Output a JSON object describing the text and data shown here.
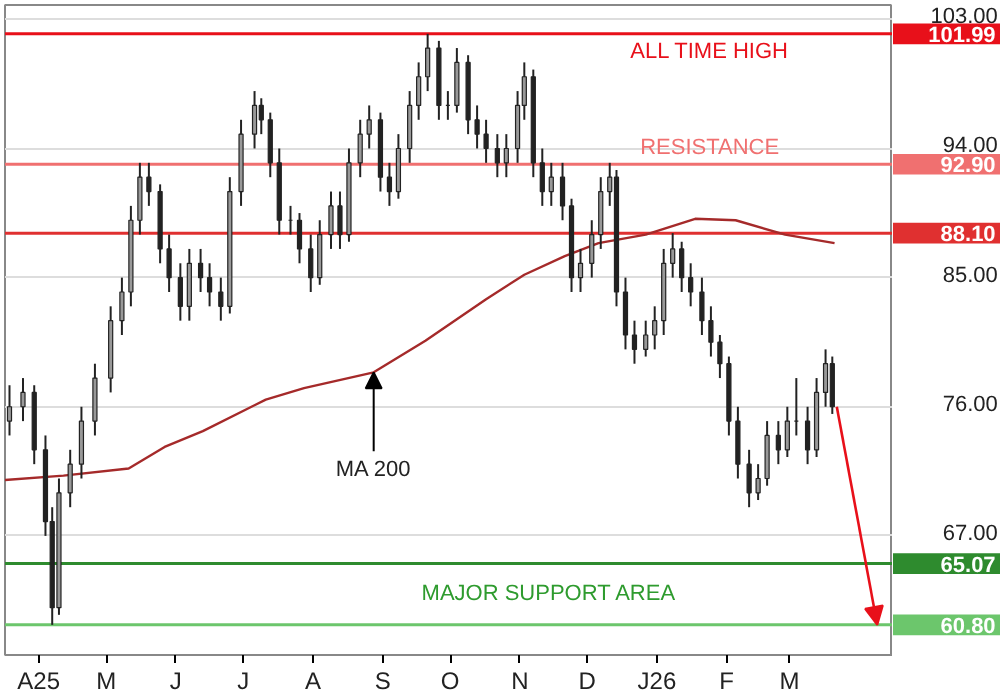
{
  "chart_data": {
    "type": "candlestick",
    "x": [
      "2025-03-19",
      "2025-03-25",
      "2025-03-30",
      "2025-04-04",
      "2025-04-07",
      "2025-04-10",
      "2025-04-15",
      "2025-04-20",
      "2025-04-26",
      "2025-05-03",
      "2025-05-08",
      "2025-05-12",
      "2025-05-16",
      "2025-05-20",
      "2025-05-25",
      "2025-05-29",
      "2025-06-03",
      "2025-06-07",
      "2025-06-12",
      "2025-06-16",
      "2025-06-21",
      "2025-06-25",
      "2025-06-30",
      "2025-07-06",
      "2025-07-09",
      "2025-07-13",
      "2025-07-17",
      "2025-07-22",
      "2025-07-26",
      "2025-07-31",
      "2025-08-04",
      "2025-08-09",
      "2025-08-13",
      "2025-08-17",
      "2025-08-22",
      "2025-08-26",
      "2025-08-31",
      "2025-09-04",
      "2025-09-08",
      "2025-09-13",
      "2025-09-17",
      "2025-09-21",
      "2025-09-26",
      "2025-09-30",
      "2025-10-04",
      "2025-10-09",
      "2025-10-13",
      "2025-10-17",
      "2025-10-22",
      "2025-10-26",
      "2025-10-31",
      "2025-11-03",
      "2025-11-07",
      "2025-11-11",
      "2025-11-15",
      "2025-11-20",
      "2025-11-24",
      "2025-11-28",
      "2025-12-03",
      "2025-12-07",
      "2025-12-11",
      "2025-12-14",
      "2025-12-18",
      "2025-12-22",
      "2025-12-27",
      "2025-12-31",
      "2026-01-04",
      "2026-01-08",
      "2026-01-12",
      "2026-01-16",
      "2026-01-21",
      "2026-01-25",
      "2026-01-29",
      "2026-02-02",
      "2026-02-06",
      "2026-02-11",
      "2026-02-15",
      "2026-02-19",
      "2026-02-24",
      "2026-02-28",
      "2026-03-04",
      "2026-03-09",
      "2026-03-13",
      "2026-03-17",
      "2026-03-20"
    ],
    "ohlc": [
      [
        75,
        77.5,
        74,
        76
      ],
      [
        76,
        78,
        75,
        77
      ],
      [
        77,
        77.5,
        72,
        73
      ],
      [
        73,
        74,
        67,
        68
      ],
      [
        68,
        69,
        60.8,
        62
      ],
      [
        62,
        71,
        61.5,
        70
      ],
      [
        70,
        73,
        69,
        72
      ],
      [
        72,
        76,
        71,
        75
      ],
      [
        75,
        79,
        74,
        78
      ],
      [
        78,
        83,
        77,
        82
      ],
      [
        82,
        85,
        81,
        84
      ],
      [
        84,
        90,
        83,
        89
      ],
      [
        89,
        93,
        88,
        92
      ],
      [
        92,
        93,
        90,
        91
      ],
      [
        91,
        91.5,
        86,
        87
      ],
      [
        87,
        88,
        84,
        85
      ],
      [
        85,
        86,
        82,
        83
      ],
      [
        83,
        87,
        82,
        86
      ],
      [
        86,
        87,
        84,
        85
      ],
      [
        85,
        86,
        83,
        84
      ],
      [
        84,
        85,
        82,
        83
      ],
      [
        83,
        92,
        82.5,
        91
      ],
      [
        91,
        96,
        90,
        95
      ],
      [
        95,
        98,
        94,
        97
      ],
      [
        97,
        97.5,
        95,
        96
      ],
      [
        96,
        96.5,
        92,
        93
      ],
      [
        93,
        94,
        88,
        89
      ],
      [
        89,
        90,
        88,
        89
      ],
      [
        89,
        89.5,
        86,
        87
      ],
      [
        87,
        88,
        84,
        85
      ],
      [
        85,
        89,
        84.5,
        88
      ],
      [
        88,
        91,
        87,
        90
      ],
      [
        90,
        91,
        87,
        88
      ],
      [
        88,
        94,
        87.5,
        93
      ],
      [
        93,
        96,
        92,
        95
      ],
      [
        95,
        97,
        94,
        96
      ],
      [
        96,
        96.5,
        91,
        92
      ],
      [
        92,
        93,
        90,
        91
      ],
      [
        91,
        95,
        90.5,
        94
      ],
      [
        94,
        98,
        93,
        97
      ],
      [
        97,
        100,
        96,
        99
      ],
      [
        99,
        101.99,
        98,
        101
      ],
      [
        101,
        101.5,
        96,
        97
      ],
      [
        97,
        98,
        96,
        97
      ],
      [
        97,
        101,
        96.5,
        100
      ],
      [
        100,
        100.5,
        95,
        96
      ],
      [
        96,
        97,
        94,
        95
      ],
      [
        95,
        96,
        93,
        94
      ],
      [
        94,
        95,
        92,
        93
      ],
      [
        93,
        95,
        92,
        94
      ],
      [
        94,
        98,
        93,
        97
      ],
      [
        97,
        100,
        96,
        99
      ],
      [
        99,
        99.5,
        92,
        93
      ],
      [
        93,
        94,
        90,
        91
      ],
      [
        91,
        93,
        90,
        92
      ],
      [
        92,
        93,
        89,
        90
      ],
      [
        90,
        90.5,
        84,
        85
      ],
      [
        85,
        87,
        84,
        86
      ],
      [
        86,
        89,
        85,
        88
      ],
      [
        88,
        92,
        87,
        91
      ],
      [
        91,
        93,
        90,
        92
      ],
      [
        92,
        92.5,
        83,
        84
      ],
      [
        84,
        85,
        80,
        81
      ],
      [
        81,
        82,
        79,
        80
      ],
      [
        80,
        82,
        79.5,
        81
      ],
      [
        81,
        83,
        80,
        82
      ],
      [
        82,
        87,
        81,
        86
      ],
      [
        86,
        88.1,
        85,
        87
      ],
      [
        87,
        87.5,
        84,
        85
      ],
      [
        85,
        86,
        83,
        84
      ],
      [
        84,
        85,
        81,
        82
      ],
      [
        82,
        83,
        79.5,
        80.5
      ],
      [
        80.5,
        81,
        78,
        79
      ],
      [
        79,
        79.5,
        74,
        75
      ],
      [
        75,
        76,
        71,
        72
      ],
      [
        72,
        73,
        69,
        70
      ],
      [
        70,
        72,
        69.5,
        71
      ],
      [
        71,
        75,
        70.5,
        74
      ],
      [
        74,
        75,
        72,
        73
      ],
      [
        73,
        76,
        72.5,
        75
      ],
      [
        75,
        78,
        74,
        75
      ],
      [
        75,
        76,
        72,
        73
      ],
      [
        73,
        78,
        72.5,
        77
      ],
      [
        77,
        80,
        76,
        79
      ],
      [
        79,
        79.5,
        75.5,
        76
      ]
    ],
    "color": "#222222",
    "series": [
      {
        "type": "line",
        "color": "#a52a2a",
        "x": [
          "2025-03-17",
          "2025-04-12",
          "2025-05-11",
          "2025-05-27",
          "2025-06-13",
          "2025-07-11",
          "2025-07-28",
          "2025-08-28",
          "2025-09-20",
          "2025-10-17",
          "2025-11-03",
          "2025-11-21",
          "2025-12-06",
          "2025-12-27",
          "2026-01-18",
          "2026-02-05",
          "2026-02-27",
          "2026-03-21"
        ],
        "values": [
          70.9,
          71.2,
          71.7,
          73.2,
          74.3,
          76.5,
          77.3,
          78.4,
          80.6,
          83.5,
          85.2,
          86.5,
          87.4,
          88.0,
          89.1,
          89.0,
          88.0,
          87.4
        ]
      }
    ],
    "xlim": [
      "2025-03-17",
      "2026-04-16"
    ],
    "xticks": [
      {
        "value": "2025-04-01",
        "label": "A25"
      },
      {
        "value": "2025-05-01",
        "label": "M"
      },
      {
        "value": "2025-06-01",
        "label": "J"
      },
      {
        "value": "2025-07-01",
        "label": "J"
      },
      {
        "value": "2025-08-01",
        "label": "A"
      },
      {
        "value": "2025-09-01",
        "label": "S"
      },
      {
        "value": "2025-10-01",
        "label": "O"
      },
      {
        "value": "2025-11-01",
        "label": "N"
      },
      {
        "value": "2025-12-01",
        "label": "D"
      },
      {
        "value": "2026-01-01",
        "label": "J26"
      },
      {
        "value": "2026-02-01",
        "label": "F"
      },
      {
        "value": "2026-03-01",
        "label": "M"
      }
    ],
    "ylim": [
      58.7,
      104
    ],
    "yticks": [
      {
        "value": 67,
        "label": "67.00"
      },
      {
        "value": 76,
        "label": "76.00"
      },
      {
        "value": 85,
        "label": "85.00"
      },
      {
        "value": 94,
        "label": "94.00"
      },
      {
        "value": 103,
        "label": "103.00"
      }
    ],
    "grid": "y",
    "ref_lines": [
      {
        "axis": "y",
        "value": 101.99,
        "label": "101.99",
        "color": "#e8101a"
      },
      {
        "axis": "y",
        "value": 92.9,
        "label": "92.90",
        "color": "#f07070"
      },
      {
        "axis": "y",
        "value": 88.1,
        "label": "88.10",
        "color": "#e03030"
      },
      {
        "axis": "y",
        "value": 65.07,
        "label": "65.07",
        "color": "#2e8b2e"
      },
      {
        "axis": "y",
        "value": 60.8,
        "label": "60.80",
        "color": "#6cc66c"
      }
    ],
    "annotations": [
      "ALL TIME HIGH",
      "RESISTANCE",
      "MAJOR SUPPORT AREA",
      {
        "text": "MA 200",
        "x": "2025-08-28",
        "y": 78.4
      }
    ]
  }
}
